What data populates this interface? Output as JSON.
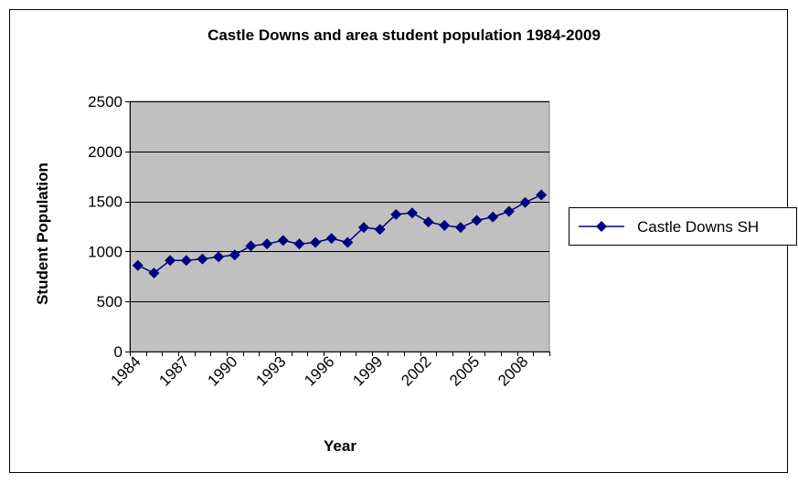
{
  "colors": {
    "plot_area": "#c0c0c0",
    "series": "#000080",
    "gridline": "#000000",
    "frame": "#000000",
    "background": "#ffffff"
  },
  "chart_data": {
    "type": "line",
    "title": "Castle Downs and area student population 1984-2009",
    "xlabel": "Year",
    "ylabel": "Student Population",
    "ylim": [
      0,
      2500
    ],
    "y_ticks": [
      0,
      500,
      1000,
      1500,
      2000,
      2500
    ],
    "y_tick_labels": [
      "0",
      "500",
      "1000",
      "1500",
      "2000",
      "2500"
    ],
    "x_tick_labels": [
      "1984",
      "1987",
      "1990",
      "1993",
      "1996",
      "1999",
      "2002",
      "2005",
      "2008"
    ],
    "grid": true,
    "legend_position": "right",
    "marker": "diamond",
    "x": [
      1984,
      1985,
      1986,
      1987,
      1988,
      1989,
      1990,
      1991,
      1992,
      1993,
      1994,
      1995,
      1996,
      1997,
      1998,
      1999,
      2000,
      2001,
      2002,
      2003,
      2004,
      2005,
      2006,
      2007,
      2008,
      2009
    ],
    "series": [
      {
        "name": "Castle Downs SH",
        "values": [
          860,
          785,
          910,
          910,
          925,
          945,
          965,
          1055,
          1075,
          1110,
          1075,
          1090,
          1130,
          1090,
          1240,
          1220,
          1370,
          1385,
          1295,
          1260,
          1240,
          1310,
          1345,
          1400,
          1490,
          1565
        ]
      }
    ]
  }
}
